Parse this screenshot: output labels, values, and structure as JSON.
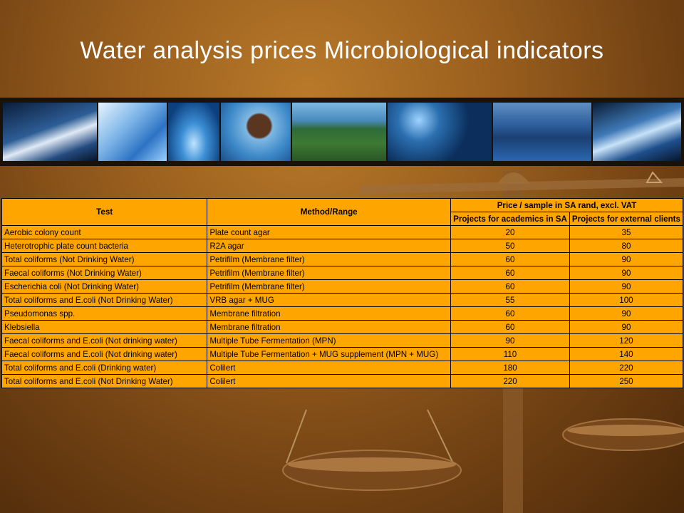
{
  "slide": {
    "title": "Water analysis prices Microbiological indicators"
  },
  "banner": {
    "photos": [
      "ocean-wave",
      "water-glass",
      "water-splash",
      "child-in-water",
      "river-aerial",
      "water-bubbles",
      "treatment-plant",
      "water-outflow"
    ]
  },
  "table": {
    "header": {
      "test": "Test",
      "method": "Method/Range",
      "price_group": "Price / sample in SA rand, excl. VAT",
      "academic": "Projects for academics in SA",
      "external": "Projects for external clients"
    },
    "rows": [
      {
        "test": "Aerobic colony count",
        "method": "Plate count agar",
        "academic": "20",
        "external": "35"
      },
      {
        "test": "Heterotrophic plate count bacteria",
        "method": "R2A agar",
        "academic": "50",
        "external": "80"
      },
      {
        "test": "Total coliforms (Not Drinking Water)",
        "method": "Petrifilm (Membrane filter)",
        "academic": "60",
        "external": "90"
      },
      {
        "test": "Faecal coliforms (Not Drinking Water)",
        "method": "Petrifilm (Membrane filter)",
        "academic": "60",
        "external": "90"
      },
      {
        "test": "Escherichia coli (Not Drinking Water)",
        "method": "Petrifilm (Membrane filter)",
        "academic": "60",
        "external": "90"
      },
      {
        "test": "Total coliforms and E.coli (Not Drinking Water)",
        "method": "VRB agar + MUG",
        "academic": "55",
        "external": "100"
      },
      {
        "test": "Pseudomonas spp.",
        "method": "Membrane filtration",
        "academic": "60",
        "external": "90"
      },
      {
        "test": "Klebsiella",
        "method": "Membrane filtration",
        "academic": "60",
        "external": "90"
      },
      {
        "test": "Faecal coliforms and E.coli (Not drinking water)",
        "method": "Multiple Tube Fermentation (MPN)",
        "academic": "90",
        "external": "120"
      },
      {
        "test": "Faecal coliforms and E.coli (Not drinking water)",
        "method": "Multiple Tube Fermentation + MUG supplement (MPN + MUG)",
        "academic": "110",
        "external": "140"
      },
      {
        "test": "Total coliforms and E.coli (Drinking water)",
        "method": "Colilert",
        "academic": "180",
        "external": "220"
      },
      {
        "test": "Total coliforms and E.coli (Not Drinking Water)",
        "method": "Colilert",
        "academic": "220",
        "external": "250"
      }
    ]
  }
}
